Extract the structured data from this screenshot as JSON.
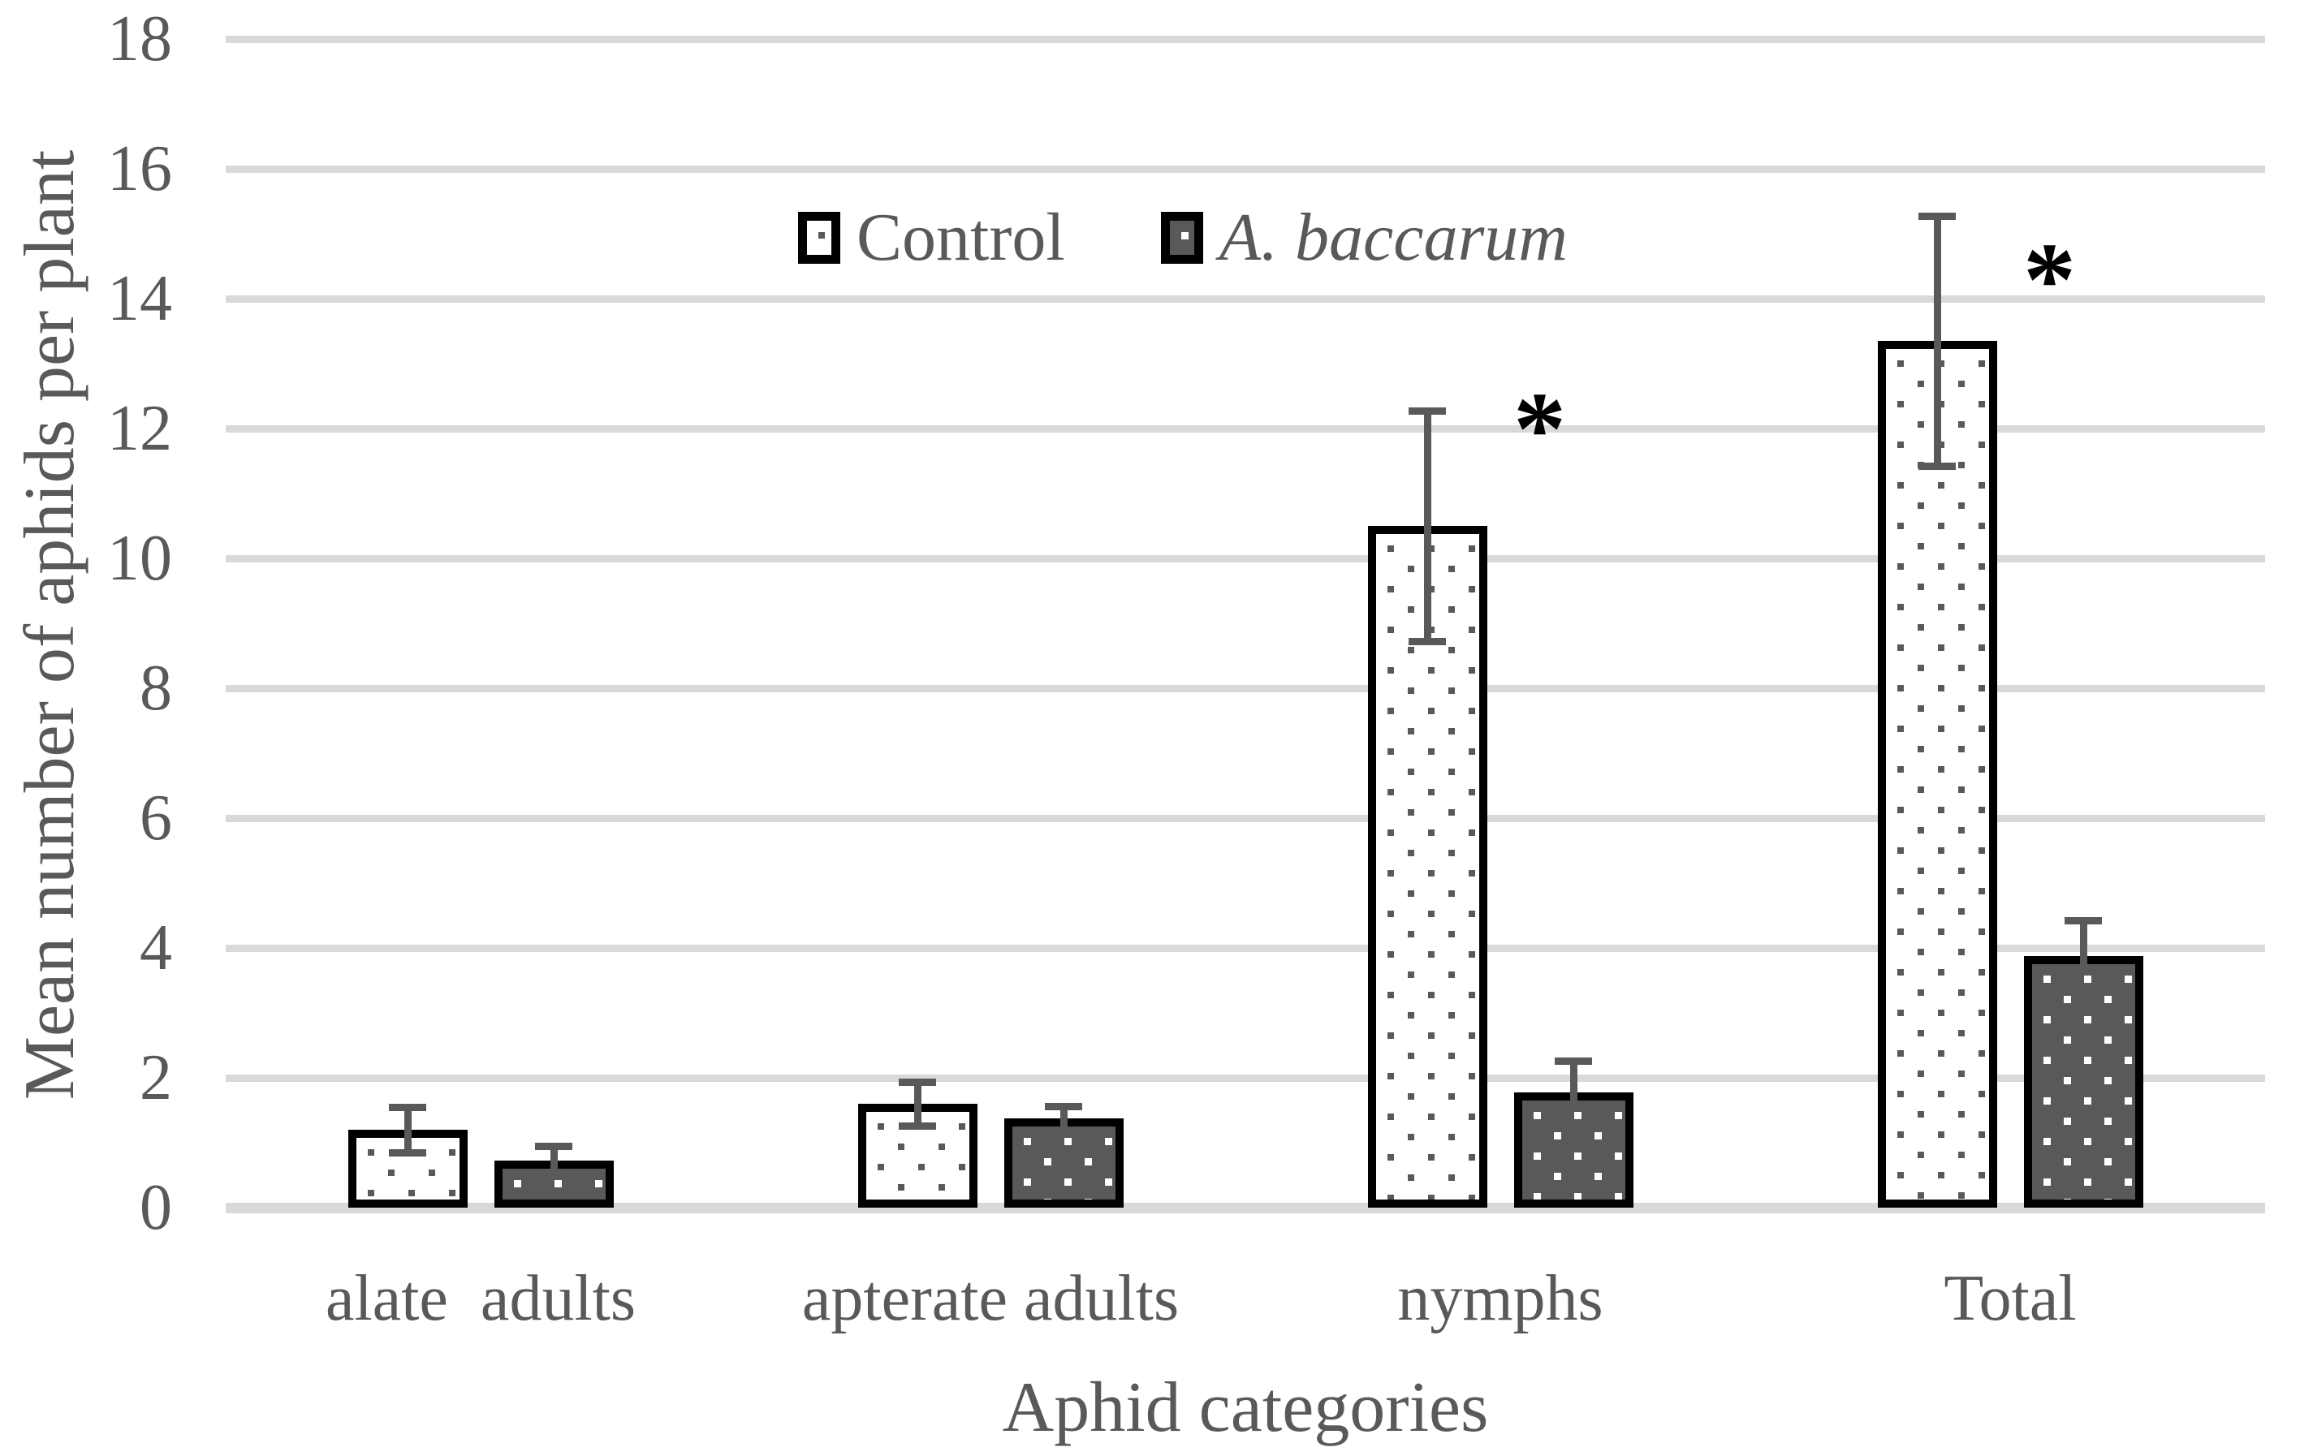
{
  "chart_data": {
    "type": "bar",
    "title": "",
    "xlabel": "Aphid categories",
    "ylabel": "Mean number of aphids per plant",
    "categories": [
      "alate  adults",
      "apterate adults",
      "nymphs",
      "Total"
    ],
    "series": [
      {
        "name": "Control",
        "values": [
          1.2,
          1.6,
          10.5,
          13.35
        ],
        "errors": [
          0.35,
          0.34,
          1.78,
          1.93
        ],
        "pattern": "white-with-dark-dots"
      },
      {
        "name": "A. baccarum",
        "values": [
          0.72,
          1.38,
          1.78,
          3.87
        ],
        "errors": [
          0.23,
          0.18,
          0.48,
          0.56
        ],
        "pattern": "dark-with-white-dots"
      }
    ],
    "significance": [
      {
        "category": "nymphs",
        "marker": "*",
        "y": 12.2
      },
      {
        "category": "Total",
        "marker": "*",
        "y": 14.5
      }
    ],
    "ylim": [
      0,
      18
    ],
    "yticks": [
      0,
      2,
      4,
      6,
      8,
      10,
      12,
      14,
      16,
      18
    ],
    "grid": true,
    "legend_position": "top-center",
    "error_bars": "both-directions-visible-on-control-upper-only-visible-on-dark"
  },
  "colors": {
    "text": "#595959",
    "gridline": "#d9d9d9",
    "bar_border": "#000000",
    "control_fill": "#ffffff",
    "control_dot": "#595959",
    "abaccarum_fill": "#595959",
    "abaccarum_dot": "#ffffff",
    "error_bar": "#595959",
    "significance": "#000000"
  }
}
